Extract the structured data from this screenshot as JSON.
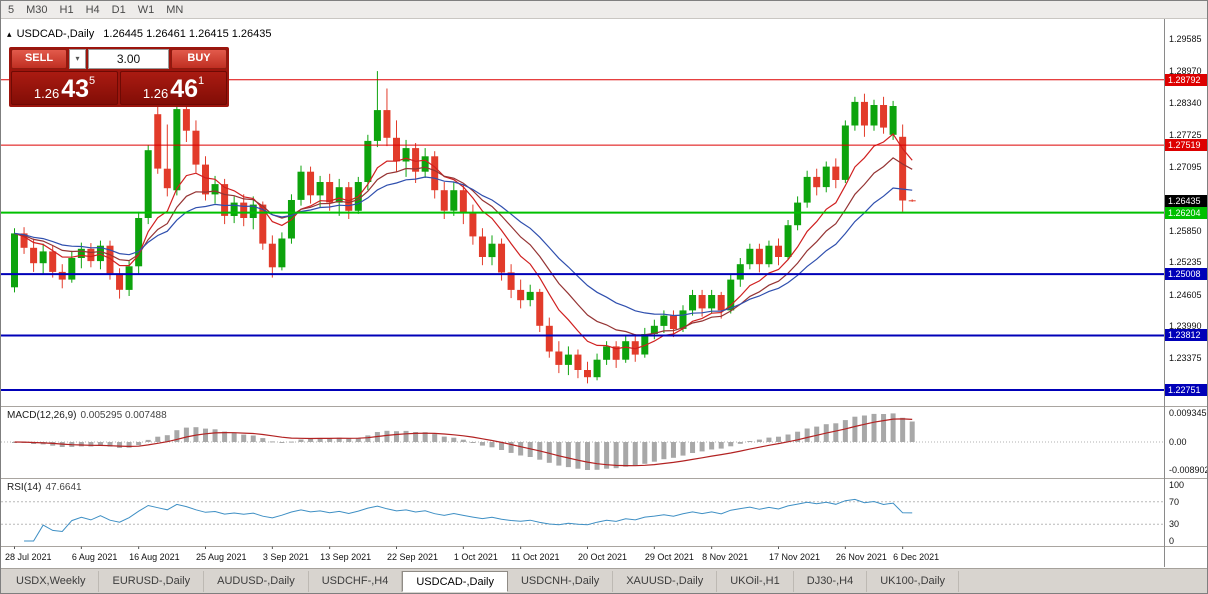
{
  "toolbar": {
    "timeframes": [
      "5",
      "M30",
      "H1",
      "H4",
      "D1",
      "W1",
      "MN"
    ]
  },
  "icons": {
    "collapse": "▴",
    "dropdown": "▾"
  },
  "chart": {
    "symbol_period": "USDCAD-,Daily",
    "ohlc": "1.26445 1.26461 1.26415 1.26435"
  },
  "trade_panel": {
    "sell_label": "SELL",
    "buy_label": "BUY",
    "volume": "3.00",
    "bid_small": "1.26",
    "bid_big": "43",
    "bid_sup": "5",
    "ask_small": "1.26",
    "ask_big": "46",
    "ask_sup": "1"
  },
  "indicators": {
    "macd_label": "MACD(12,26,9)",
    "macd_values": "0.005295 0.007488",
    "rsi_label": "RSI(14)",
    "rsi_value": "47.6641"
  },
  "axes": {
    "price_ticks": [
      "1.29585",
      "1.28970",
      "1.28340",
      "1.27725",
      "1.27095",
      "1.25850",
      "1.25235",
      "1.24605",
      "1.23990",
      "1.23375"
    ],
    "macd_ticks": [
      {
        "v": 0.009345,
        "label": "0.009345"
      },
      {
        "v": 0,
        "label": "0.00"
      },
      {
        "v": -0.008902,
        "label": "-0.008902"
      }
    ],
    "rsi_ticks": [
      {
        "v": 100,
        "label": "100"
      },
      {
        "v": 70,
        "label": "70"
      },
      {
        "v": 30,
        "label": "30"
      },
      {
        "v": 0,
        "label": "0"
      }
    ]
  },
  "chart_data": {
    "type": "candlestick",
    "title": "USDCAD-,Daily",
    "ylim_price": [
      1.2244,
      1.29974
    ],
    "macd_range": [
      -0.0116,
      0.011
    ],
    "rsi_range": [
      0,
      100
    ],
    "colors": {
      "bull": "#0da30d",
      "bear": "#e23b2a"
    },
    "x_labels": [
      {
        "i": 0,
        "label": "28 Jul 2021"
      },
      {
        "i": 7,
        "label": "6 Aug 2021"
      },
      {
        "i": 13,
        "label": "16 Aug 2021"
      },
      {
        "i": 20,
        "label": "25 Aug 2021"
      },
      {
        "i": 27,
        "label": "3 Sep 2021"
      },
      {
        "i": 33,
        "label": "13 Sep 2021"
      },
      {
        "i": 40,
        "label": "22 Sep 2021"
      },
      {
        "i": 47,
        "label": "1 Oct 2021"
      },
      {
        "i": 53,
        "label": "11 Oct 2021"
      },
      {
        "i": 60,
        "label": "20 Oct 2021"
      },
      {
        "i": 67,
        "label": "29 Oct 2021"
      },
      {
        "i": 73,
        "label": "8 Nov 2021"
      },
      {
        "i": 80,
        "label": "17 Nov 2021"
      },
      {
        "i": 87,
        "label": "26 Nov 2021"
      },
      {
        "i": 93,
        "label": "6 Dec 2021"
      }
    ],
    "candles": [
      [
        1.2475,
        1.259,
        1.2465,
        1.258
      ],
      [
        1.258,
        1.2592,
        1.254,
        1.2552
      ],
      [
        1.2552,
        1.257,
        1.2505,
        1.2522
      ],
      [
        1.2522,
        1.256,
        1.2502,
        1.2545
      ],
      [
        1.2545,
        1.2556,
        1.2494,
        1.2505
      ],
      [
        1.2505,
        1.252,
        1.2473,
        1.249
      ],
      [
        1.249,
        1.2546,
        1.2484,
        1.2532
      ],
      [
        1.2532,
        1.2562,
        1.2512,
        1.255
      ],
      [
        1.255,
        1.2561,
        1.2514,
        1.2526
      ],
      [
        1.2526,
        1.2566,
        1.251,
        1.2556
      ],
      [
        1.2556,
        1.2566,
        1.249,
        1.2502
      ],
      [
        1.2502,
        1.2512,
        1.2453,
        1.247
      ],
      [
        1.247,
        1.2526,
        1.2458,
        1.2516
      ],
      [
        1.2516,
        1.2622,
        1.25,
        1.261
      ],
      [
        1.261,
        1.2752,
        1.2598,
        1.2742
      ],
      [
        1.2812,
        1.2832,
        1.2696,
        1.2706
      ],
      [
        1.2706,
        1.2792,
        1.2652,
        1.2668
      ],
      [
        1.2664,
        1.283,
        1.2654,
        1.2822
      ],
      [
        1.2822,
        1.2836,
        1.2758,
        1.278
      ],
      [
        1.278,
        1.28,
        1.2698,
        1.2714
      ],
      [
        1.2714,
        1.273,
        1.2644,
        1.2656
      ],
      [
        1.2656,
        1.2692,
        1.2638,
        1.2676
      ],
      [
        1.2676,
        1.2686,
        1.2598,
        1.2614
      ],
      [
        1.2614,
        1.2652,
        1.26,
        1.264
      ],
      [
        1.264,
        1.2656,
        1.2594,
        1.261
      ],
      [
        1.261,
        1.2652,
        1.2588,
        1.2636
      ],
      [
        1.2636,
        1.2642,
        1.2548,
        1.256
      ],
      [
        1.256,
        1.2576,
        1.2494,
        1.2514
      ],
      [
        1.2514,
        1.2582,
        1.2508,
        1.257
      ],
      [
        1.257,
        1.2656,
        1.256,
        1.2645
      ],
      [
        1.2645,
        1.2712,
        1.2634,
        1.27
      ],
      [
        1.27,
        1.271,
        1.2638,
        1.2654
      ],
      [
        1.2654,
        1.2692,
        1.263,
        1.268
      ],
      [
        1.268,
        1.2696,
        1.2624,
        1.264
      ],
      [
        1.264,
        1.2686,
        1.2614,
        1.267
      ],
      [
        1.267,
        1.268,
        1.2608,
        1.2624
      ],
      [
        1.2624,
        1.269,
        1.2618,
        1.268
      ],
      [
        1.268,
        1.2772,
        1.2664,
        1.276
      ],
      [
        1.276,
        1.2896,
        1.2748,
        1.282
      ],
      [
        1.282,
        1.2862,
        1.275,
        1.2766
      ],
      [
        1.2766,
        1.28,
        1.27,
        1.272
      ],
      [
        1.272,
        1.2762,
        1.269,
        1.2746
      ],
      [
        1.2746,
        1.2756,
        1.2678,
        1.27
      ],
      [
        1.27,
        1.2746,
        1.2688,
        1.273
      ],
      [
        1.273,
        1.274,
        1.2648,
        1.2664
      ],
      [
        1.2664,
        1.268,
        1.2608,
        1.2624
      ],
      [
        1.2624,
        1.268,
        1.2614,
        1.2664
      ],
      [
        1.2664,
        1.2676,
        1.2598,
        1.262
      ],
      [
        1.262,
        1.2636,
        1.2558,
        1.2574
      ],
      [
        1.2574,
        1.259,
        1.2518,
        1.2534
      ],
      [
        1.2534,
        1.2576,
        1.2518,
        1.256
      ],
      [
        1.256,
        1.257,
        1.2488,
        1.2504
      ],
      [
        1.2504,
        1.252,
        1.2454,
        1.247
      ],
      [
        1.247,
        1.249,
        1.2434,
        1.245
      ],
      [
        1.245,
        1.248,
        1.2438,
        1.2466
      ],
      [
        1.2466,
        1.2472,
        1.2388,
        1.24
      ],
      [
        1.24,
        1.2416,
        1.2338,
        1.235
      ],
      [
        1.235,
        1.237,
        1.2308,
        1.2324
      ],
      [
        1.2324,
        1.236,
        1.2304,
        1.2344
      ],
      [
        1.2344,
        1.2354,
        1.2298,
        1.2314
      ],
      [
        1.2314,
        1.233,
        1.2288,
        1.23
      ],
      [
        1.23,
        1.2346,
        1.2294,
        1.2334
      ],
      [
        1.2334,
        1.237,
        1.2324,
        1.236
      ],
      [
        1.236,
        1.237,
        1.2318,
        1.2334
      ],
      [
        1.2334,
        1.238,
        1.2328,
        1.237
      ],
      [
        1.237,
        1.2384,
        1.233,
        1.2344
      ],
      [
        1.2344,
        1.2396,
        1.2338,
        1.2384
      ],
      [
        1.2384,
        1.2412,
        1.2374,
        1.24
      ],
      [
        1.24,
        1.243,
        1.2386,
        1.242
      ],
      [
        1.242,
        1.243,
        1.2378,
        1.2394
      ],
      [
        1.2394,
        1.244,
        1.2388,
        1.243
      ],
      [
        1.243,
        1.247,
        1.242,
        1.246
      ],
      [
        1.246,
        1.247,
        1.2418,
        1.2434
      ],
      [
        1.2434,
        1.247,
        1.2424,
        1.246
      ],
      [
        1.246,
        1.2466,
        1.2414,
        1.243
      ],
      [
        1.243,
        1.25,
        1.2424,
        1.249
      ],
      [
        1.249,
        1.2532,
        1.2476,
        1.252
      ],
      [
        1.252,
        1.256,
        1.251,
        1.255
      ],
      [
        1.255,
        1.256,
        1.2504,
        1.252
      ],
      [
        1.252,
        1.2566,
        1.2514,
        1.2556
      ],
      [
        1.2556,
        1.257,
        1.2518,
        1.2534
      ],
      [
        1.2534,
        1.2606,
        1.2528,
        1.2596
      ],
      [
        1.2596,
        1.2652,
        1.2586,
        1.264
      ],
      [
        1.264,
        1.2702,
        1.263,
        1.269
      ],
      [
        1.269,
        1.2706,
        1.2654,
        1.267
      ],
      [
        1.267,
        1.272,
        1.266,
        1.271
      ],
      [
        1.271,
        1.2726,
        1.2668,
        1.2684
      ],
      [
        1.2684,
        1.28,
        1.2678,
        1.279
      ],
      [
        1.279,
        1.2846,
        1.278,
        1.2836
      ],
      [
        1.2836,
        1.2852,
        1.2768,
        1.279
      ],
      [
        1.279,
        1.284,
        1.278,
        1.283
      ],
      [
        1.283,
        1.2846,
        1.2774,
        1.2786
      ],
      [
        1.2772,
        1.2838,
        1.2762,
        1.2828
      ],
      [
        1.2768,
        1.2792,
        1.2622,
        1.2644
      ],
      [
        1.26445,
        1.26461,
        1.26415,
        1.26435
      ]
    ],
    "levels": [
      {
        "price": 1.28792,
        "label": "1.28792",
        "color": "#dd0000",
        "width": 1
      },
      {
        "price": 1.27519,
        "label": "1.27519",
        "color": "#dd0000",
        "width": 1
      },
      {
        "price": 1.26204,
        "label": "1.26204",
        "color": "#00c000",
        "width": 2
      },
      {
        "price": 1.25008,
        "label": "1.25008",
        "color": "#0000b8",
        "width": 2
      },
      {
        "price": 1.23812,
        "label": "1.23812",
        "color": "#0000b8",
        "width": 2
      },
      {
        "price": 1.22751,
        "label": "1.22751",
        "color": "#0000b8",
        "width": 2
      }
    ],
    "current_price": {
      "value": 1.26435,
      "label": "1.26435",
      "bg": "#000000"
    },
    "moving_averages": [
      {
        "name": "fast-red",
        "period": 8,
        "method": "ema",
        "color": "#d02020"
      },
      {
        "name": "mid-darkred",
        "period": 13,
        "method": "ema",
        "color": "#953434"
      },
      {
        "name": "slow-blue",
        "period": 21,
        "method": "ema",
        "color": "#2f4fae"
      }
    ],
    "macd": {
      "fast": 12,
      "slow": 26,
      "signal": 9,
      "main": 0.005295,
      "signal_value": 0.007488,
      "histogram_color": "#a8a8a8",
      "signal_color": "#b22222"
    },
    "rsi": {
      "period": 14,
      "value": 47.6641,
      "color": "#3e8fc4",
      "levels": [
        70,
        30
      ]
    }
  },
  "tabs": {
    "active_index": 4,
    "items": [
      "USDX,Weekly",
      "EURUSD-,Daily",
      "AUDUSD-,Daily",
      "USDCHF-,H4",
      "USDCAD-,Daily",
      "USDCNH-,Daily",
      "XAUUSD-,Daily",
      "UKOil-,H1",
      "DJ30-,H4",
      "UK100-,Daily"
    ]
  }
}
